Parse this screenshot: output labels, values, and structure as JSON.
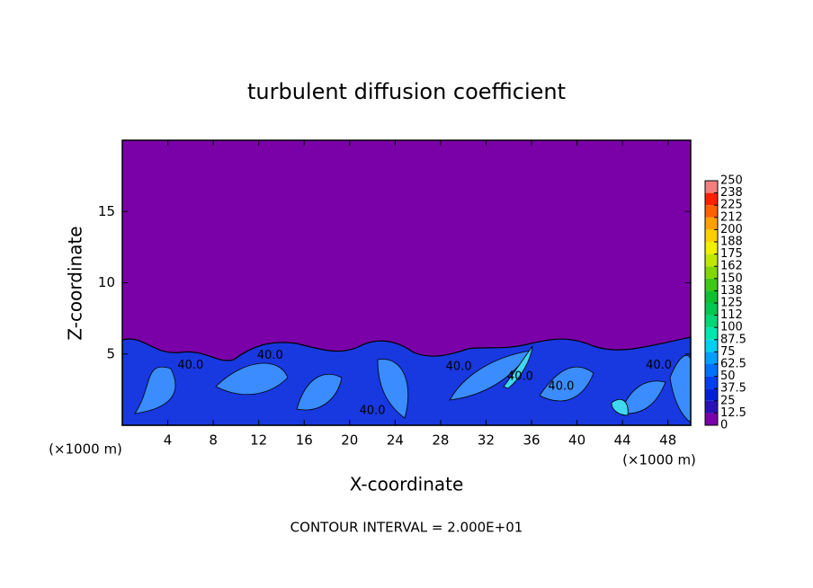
{
  "chart_data": {
    "type": "contour",
    "title": "turbulent diffusion coefficient",
    "x_label": "X-coordinate",
    "y_label": "Z-coordinate",
    "x_unit_labels": [
      "(×1000 m)",
      "(×1000 m)"
    ],
    "note": "CONTOUR INTERVAL = 2.000E+01",
    "xlim": [
      0,
      50
    ],
    "ylim": [
      0,
      20
    ],
    "xticks": [
      4,
      8,
      12,
      16,
      20,
      24,
      28,
      32,
      36,
      40,
      44,
      48
    ],
    "yticks": [
      5,
      10,
      15
    ],
    "background_color": "#7a00a8",
    "contour_labels": [
      {
        "text": "40.0",
        "x": 6.0,
        "y": 4.2
      },
      {
        "text": "40.0",
        "x": 13.0,
        "y": 4.9
      },
      {
        "text": "40.0",
        "x": 22.0,
        "y": 1.0
      },
      {
        "text": "40.0",
        "x": 29.6,
        "y": 4.1
      },
      {
        "text": "40.0",
        "x": 35.0,
        "y": 3.4
      },
      {
        "text": "40.0",
        "x": 38.6,
        "y": 2.7
      },
      {
        "text": "40.0",
        "x": 47.2,
        "y": 4.2
      }
    ],
    "colorbar": {
      "levels": [
        0,
        12.5,
        25,
        37.5,
        50,
        62.5,
        75,
        87.5,
        100,
        {
          "value": 112.5,
          "label": "112"
        },
        125,
        {
          "value": 137.5,
          "label": "138"
        },
        150,
        {
          "value": 162.5,
          "label": "162"
        },
        175,
        {
          "value": 187.5,
          "label": "188"
        },
        200,
        {
          "value": 212.5,
          "label": "212"
        },
        225,
        {
          "value": 237.5,
          "label": "238"
        },
        250
      ],
      "colors": [
        "#7a00a8",
        "#2a10b8",
        "#0020d8",
        "#0040f0",
        "#0070ff",
        "#00a0ff",
        "#00d0f0",
        "#00e8b0",
        "#00d878",
        "#00c850",
        "#10c030",
        "#40c818",
        "#80d800",
        "#c0e800",
        "#f0f000",
        "#ffd000",
        "#ffa000",
        "#ff6000",
        "#ff2000",
        "#f08080"
      ]
    }
  }
}
